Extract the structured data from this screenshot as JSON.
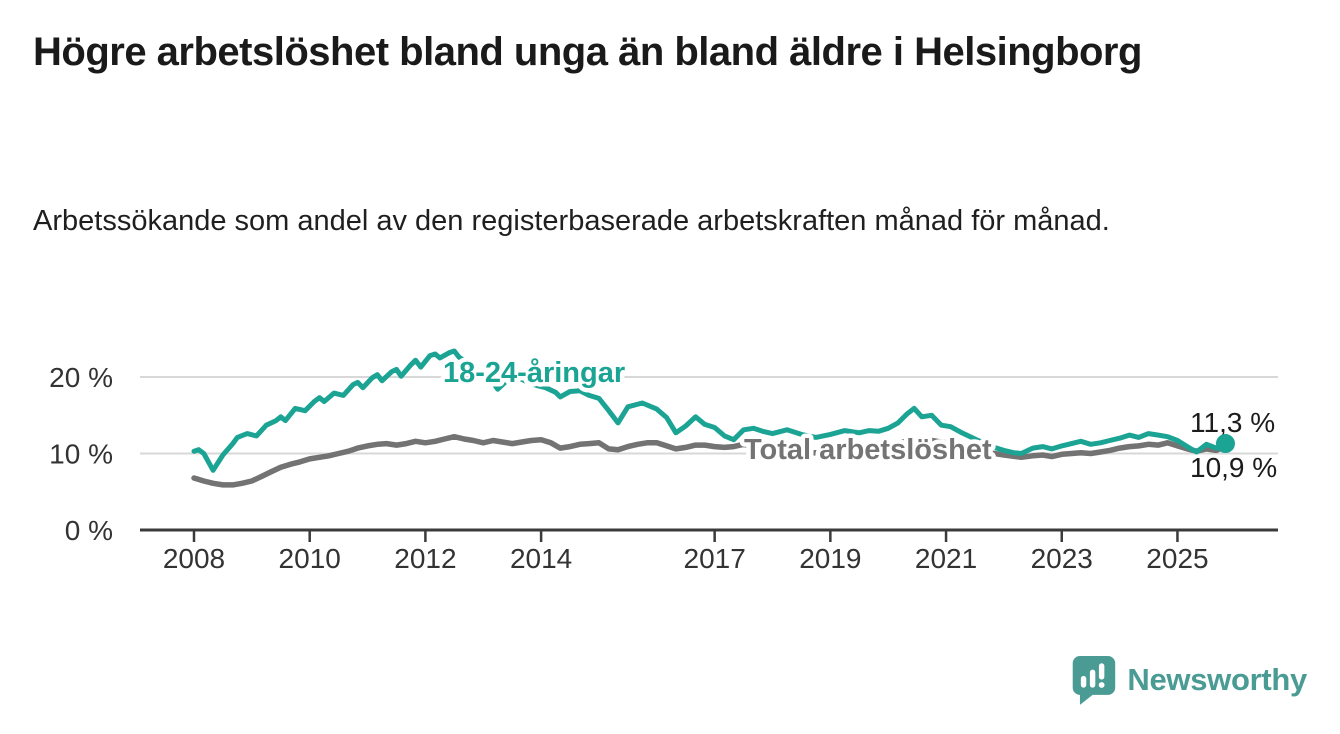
{
  "header": {
    "title": "Högre arbetslöshet bland unga än bland äldre i Helsingborg",
    "subtitle": "Arbetssökande som andel av den registerbaserade arbetskraften månad för månad."
  },
  "chart_data": {
    "type": "line",
    "unit": "%",
    "grid": true,
    "x_axis": {
      "ticks": [
        2008,
        2010,
        2012,
        2014,
        2017,
        2019,
        2021,
        2023,
        2025
      ],
      "range": [
        2007.1,
        2026.7
      ]
    },
    "y_axis": {
      "ticks": [
        {
          "value": 0,
          "label": "0 %"
        },
        {
          "value": 10,
          "label": "10 %"
        },
        {
          "value": 20,
          "label": "20 %"
        }
      ],
      "range": [
        0,
        24.5
      ]
    },
    "series": [
      {
        "name": "18-24-åringar",
        "color": "#1ba394",
        "points": [
          [
            2008.0,
            10.3
          ],
          [
            2008.08,
            10.5
          ],
          [
            2008.17,
            10.0
          ],
          [
            2008.33,
            7.8
          ],
          [
            2008.5,
            9.8
          ],
          [
            2008.67,
            11.3
          ],
          [
            2008.75,
            12.1
          ],
          [
            2008.92,
            12.6
          ],
          [
            2009.08,
            12.3
          ],
          [
            2009.25,
            13.7
          ],
          [
            2009.42,
            14.3
          ],
          [
            2009.5,
            14.8
          ],
          [
            2009.58,
            14.3
          ],
          [
            2009.75,
            15.9
          ],
          [
            2009.92,
            15.6
          ],
          [
            2010.08,
            16.8
          ],
          [
            2010.17,
            17.3
          ],
          [
            2010.25,
            16.8
          ],
          [
            2010.42,
            17.9
          ],
          [
            2010.58,
            17.6
          ],
          [
            2010.75,
            19.0
          ],
          [
            2010.83,
            19.3
          ],
          [
            2010.92,
            18.6
          ],
          [
            2011.08,
            19.9
          ],
          [
            2011.17,
            20.3
          ],
          [
            2011.25,
            19.5
          ],
          [
            2011.42,
            20.7
          ],
          [
            2011.5,
            21.0
          ],
          [
            2011.58,
            20.1
          ],
          [
            2011.75,
            21.6
          ],
          [
            2011.83,
            22.2
          ],
          [
            2011.92,
            21.3
          ],
          [
            2012.08,
            22.8
          ],
          [
            2012.17,
            23.0
          ],
          [
            2012.25,
            22.5
          ],
          [
            2012.42,
            23.2
          ],
          [
            2012.5,
            23.4
          ],
          [
            2012.58,
            22.6
          ],
          [
            2012.75,
            21.7
          ],
          [
            2012.92,
            20.8
          ],
          [
            2013.08,
            20.2
          ],
          [
            2013.25,
            18.4
          ],
          [
            2013.42,
            19.6
          ],
          [
            2013.58,
            20.0
          ],
          [
            2013.75,
            19.4
          ],
          [
            2013.92,
            18.9
          ],
          [
            2014.08,
            18.6
          ],
          [
            2014.25,
            18.0
          ],
          [
            2014.33,
            17.4
          ],
          [
            2014.5,
            18.1
          ],
          [
            2014.67,
            18.2
          ],
          [
            2014.83,
            17.6
          ],
          [
            2015.0,
            17.2
          ],
          [
            2015.17,
            15.6
          ],
          [
            2015.33,
            14.0
          ],
          [
            2015.5,
            16.1
          ],
          [
            2015.75,
            16.6
          ],
          [
            2016.0,
            15.8
          ],
          [
            2016.17,
            14.7
          ],
          [
            2016.33,
            12.7
          ],
          [
            2016.5,
            13.6
          ],
          [
            2016.67,
            14.8
          ],
          [
            2016.83,
            13.8
          ],
          [
            2017.0,
            13.4
          ],
          [
            2017.17,
            12.3
          ],
          [
            2017.33,
            11.8
          ],
          [
            2017.5,
            13.1
          ],
          [
            2017.67,
            13.3
          ],
          [
            2017.83,
            12.9
          ],
          [
            2018.0,
            12.6
          ],
          [
            2018.25,
            13.1
          ],
          [
            2018.5,
            12.5
          ],
          [
            2018.75,
            12.1
          ],
          [
            2019.0,
            12.5
          ],
          [
            2019.25,
            13.0
          ],
          [
            2019.5,
            12.7
          ],
          [
            2019.67,
            13.0
          ],
          [
            2019.83,
            12.9
          ],
          [
            2020.0,
            13.3
          ],
          [
            2020.17,
            14.0
          ],
          [
            2020.33,
            15.2
          ],
          [
            2020.45,
            15.9
          ],
          [
            2020.58,
            14.8
          ],
          [
            2020.75,
            15.0
          ],
          [
            2020.92,
            13.7
          ],
          [
            2021.08,
            13.5
          ],
          [
            2021.25,
            12.8
          ],
          [
            2021.5,
            11.9
          ],
          [
            2021.75,
            11.0
          ],
          [
            2022.0,
            10.4
          ],
          [
            2022.17,
            10.1
          ],
          [
            2022.3,
            10.0
          ],
          [
            2022.5,
            10.7
          ],
          [
            2022.67,
            10.9
          ],
          [
            2022.83,
            10.6
          ],
          [
            2023.0,
            11.0
          ],
          [
            2023.17,
            11.3
          ],
          [
            2023.33,
            11.6
          ],
          [
            2023.5,
            11.2
          ],
          [
            2023.67,
            11.4
          ],
          [
            2023.83,
            11.7
          ],
          [
            2024.0,
            12.0
          ],
          [
            2024.17,
            12.4
          ],
          [
            2024.33,
            12.1
          ],
          [
            2024.5,
            12.6
          ],
          [
            2024.67,
            12.4
          ],
          [
            2024.83,
            12.2
          ],
          [
            2025.0,
            11.7
          ],
          [
            2025.17,
            10.9
          ],
          [
            2025.33,
            10.2
          ],
          [
            2025.5,
            11.2
          ],
          [
            2025.67,
            10.7
          ],
          [
            2025.83,
            11.3
          ]
        ]
      },
      {
        "name": "Total arbetslöshet",
        "color": "#737373",
        "points": [
          [
            2008.0,
            6.8
          ],
          [
            2008.17,
            6.4
          ],
          [
            2008.33,
            6.1
          ],
          [
            2008.5,
            5.9
          ],
          [
            2008.67,
            5.9
          ],
          [
            2008.83,
            6.1
          ],
          [
            2009.0,
            6.4
          ],
          [
            2009.17,
            7.0
          ],
          [
            2009.33,
            7.6
          ],
          [
            2009.5,
            8.2
          ],
          [
            2009.67,
            8.6
          ],
          [
            2009.83,
            8.9
          ],
          [
            2010.0,
            9.3
          ],
          [
            2010.17,
            9.5
          ],
          [
            2010.33,
            9.7
          ],
          [
            2010.5,
            10.0
          ],
          [
            2010.67,
            10.3
          ],
          [
            2010.83,
            10.7
          ],
          [
            2011.0,
            11.0
          ],
          [
            2011.17,
            11.2
          ],
          [
            2011.33,
            11.3
          ],
          [
            2011.5,
            11.1
          ],
          [
            2011.67,
            11.3
          ],
          [
            2011.83,
            11.6
          ],
          [
            2012.0,
            11.4
          ],
          [
            2012.17,
            11.6
          ],
          [
            2012.33,
            11.9
          ],
          [
            2012.5,
            12.2
          ],
          [
            2012.67,
            11.9
          ],
          [
            2012.83,
            11.7
          ],
          [
            2013.0,
            11.4
          ],
          [
            2013.17,
            11.7
          ],
          [
            2013.33,
            11.5
          ],
          [
            2013.5,
            11.3
          ],
          [
            2013.67,
            11.5
          ],
          [
            2013.83,
            11.7
          ],
          [
            2014.0,
            11.8
          ],
          [
            2014.17,
            11.4
          ],
          [
            2014.33,
            10.7
          ],
          [
            2014.5,
            10.9
          ],
          [
            2014.67,
            11.2
          ],
          [
            2014.83,
            11.3
          ],
          [
            2015.0,
            11.4
          ],
          [
            2015.17,
            10.6
          ],
          [
            2015.33,
            10.5
          ],
          [
            2015.5,
            10.9
          ],
          [
            2015.67,
            11.2
          ],
          [
            2015.83,
            11.4
          ],
          [
            2016.0,
            11.4
          ],
          [
            2016.17,
            11.0
          ],
          [
            2016.33,
            10.6
          ],
          [
            2016.5,
            10.8
          ],
          [
            2016.67,
            11.1
          ],
          [
            2016.83,
            11.1
          ],
          [
            2017.0,
            10.9
          ],
          [
            2017.17,
            10.8
          ],
          [
            2017.33,
            10.9
          ],
          [
            2017.5,
            11.2
          ],
          [
            2017.67,
            10.9
          ],
          [
            2017.83,
            10.7
          ],
          [
            2018.0,
            10.4
          ],
          [
            2018.25,
            10.2
          ],
          [
            2018.5,
            10.0
          ],
          [
            2018.75,
            10.1
          ],
          [
            2019.0,
            10.2
          ],
          [
            2019.25,
            10.3
          ],
          [
            2019.5,
            10.2
          ],
          [
            2019.75,
            10.4
          ],
          [
            2020.0,
            10.8
          ],
          [
            2020.25,
            11.5
          ],
          [
            2020.5,
            11.9
          ],
          [
            2020.75,
            11.7
          ],
          [
            2021.0,
            11.4
          ],
          [
            2021.25,
            11.0
          ],
          [
            2021.5,
            10.6
          ],
          [
            2021.75,
            10.1
          ],
          [
            2022.0,
            9.8
          ],
          [
            2022.3,
            9.5
          ],
          [
            2022.5,
            9.7
          ],
          [
            2022.67,
            9.8
          ],
          [
            2022.83,
            9.6
          ],
          [
            2023.0,
            9.9
          ],
          [
            2023.17,
            10.0
          ],
          [
            2023.33,
            10.1
          ],
          [
            2023.5,
            10.0
          ],
          [
            2023.67,
            10.2
          ],
          [
            2023.83,
            10.4
          ],
          [
            2024.0,
            10.7
          ],
          [
            2024.17,
            10.9
          ],
          [
            2024.33,
            11.0
          ],
          [
            2024.5,
            11.2
          ],
          [
            2024.67,
            11.1
          ],
          [
            2024.83,
            11.4
          ],
          [
            2025.0,
            11.0
          ],
          [
            2025.17,
            10.6
          ],
          [
            2025.33,
            10.3
          ],
          [
            2025.5,
            10.6
          ],
          [
            2025.67,
            10.4
          ],
          [
            2025.83,
            10.9
          ]
        ]
      }
    ],
    "end_labels": {
      "young": "11,3 %",
      "total": "10,9 %"
    }
  },
  "footer": {
    "brand": "Newsworthy",
    "logo_color": "#4a9b94"
  }
}
